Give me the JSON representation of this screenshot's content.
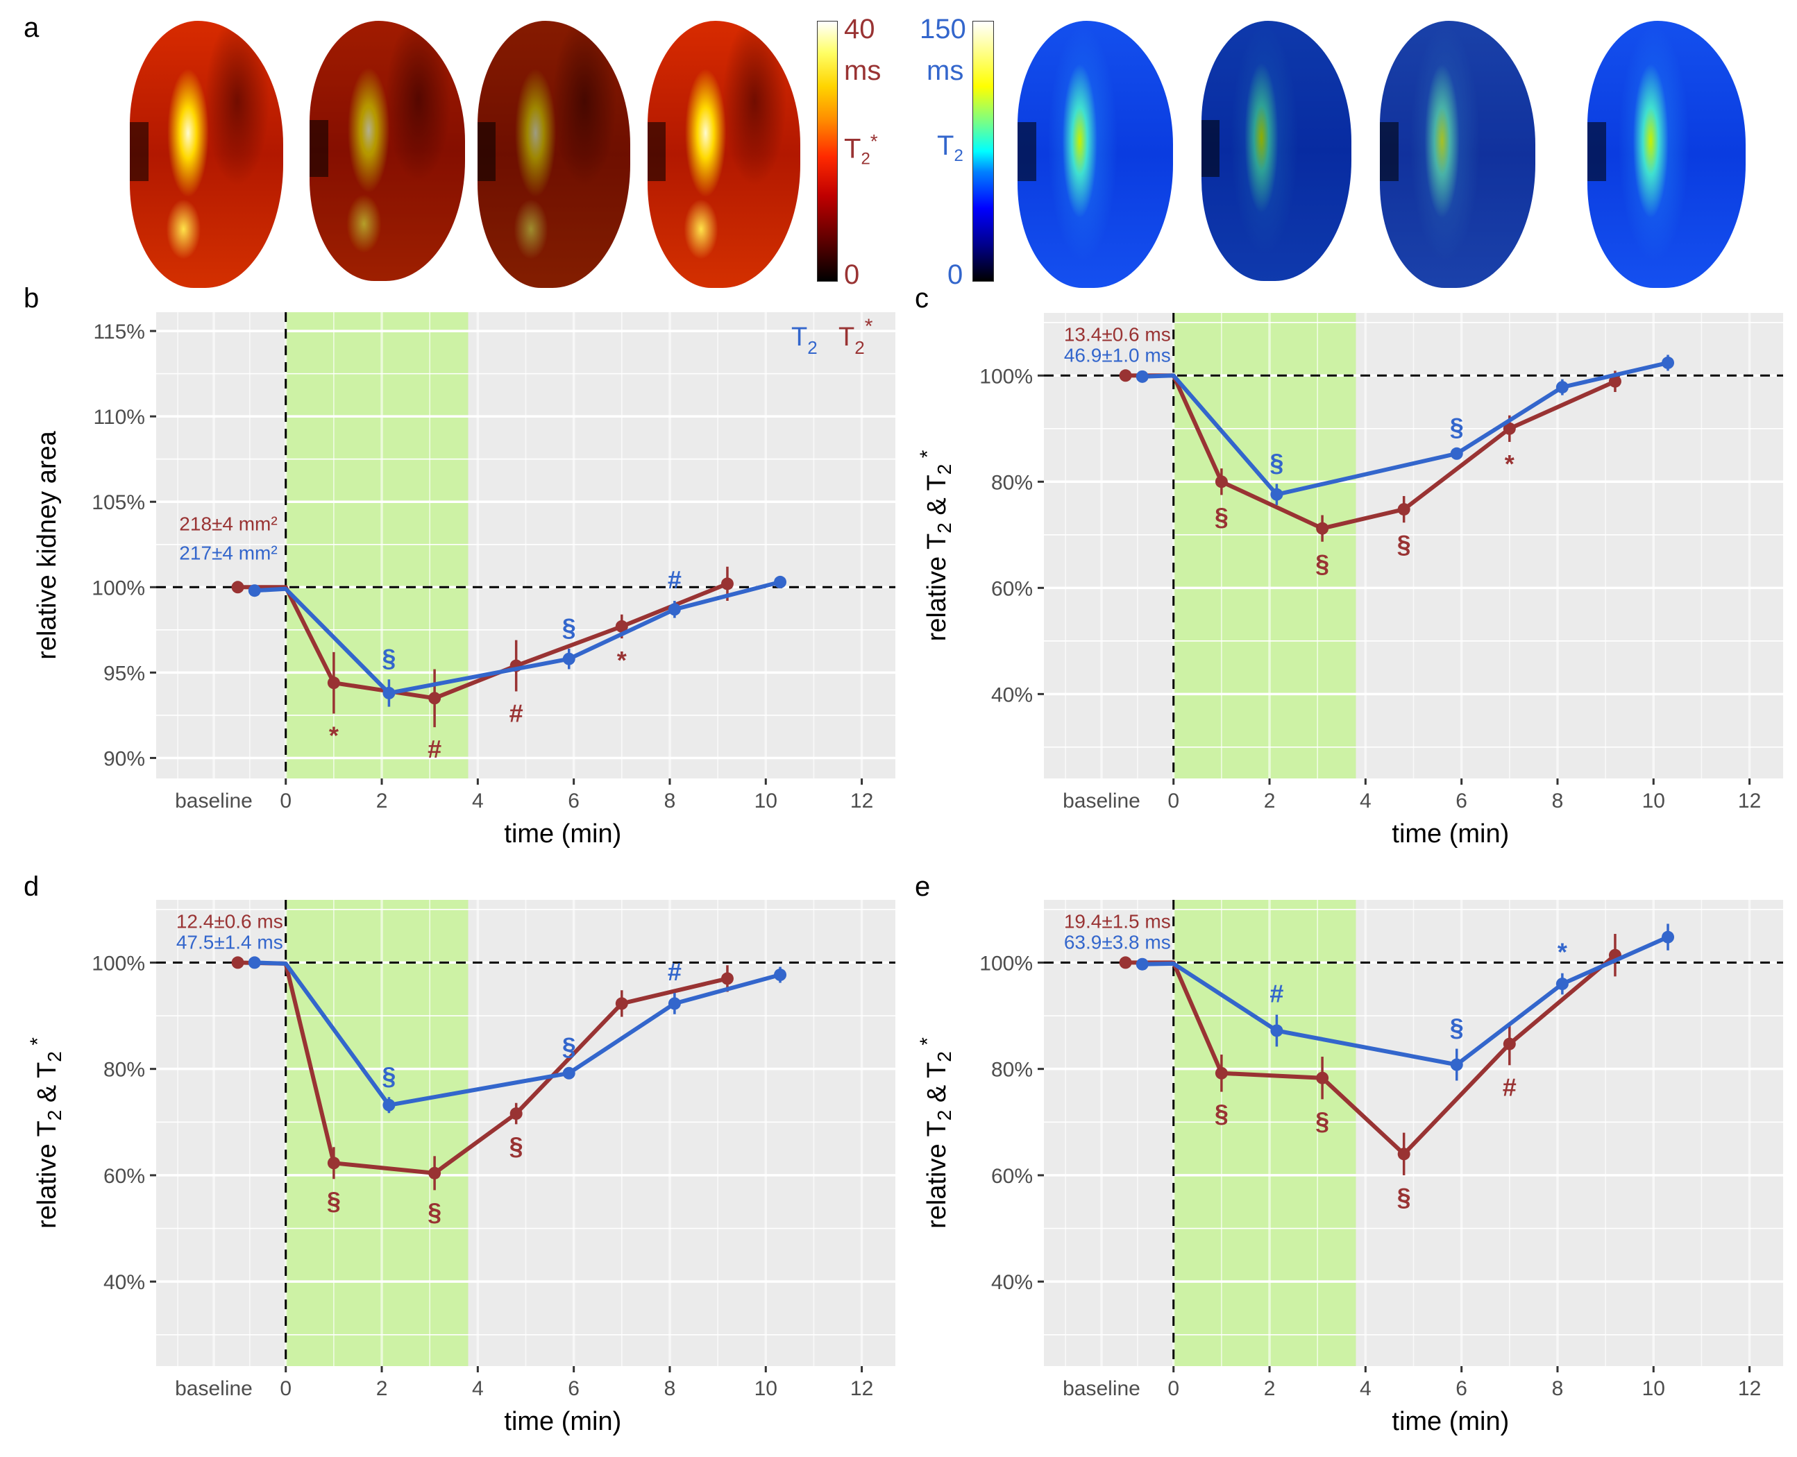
{
  "figure": {
    "panel_labels": [
      "a",
      "b",
      "c",
      "d",
      "e"
    ],
    "colors": {
      "T2star": "#993333",
      "T2": "#3366CC",
      "intervention_band": "#CDF2A5",
      "panel_bg": "#EBEBEB",
      "grid": "#FFFFFF"
    }
  },
  "panel_a": {
    "t2star_map": {
      "colorbar": {
        "max_label": "40",
        "unit_label": "ms",
        "name_label": "T",
        "name_sub": "2",
        "name_sup": "*",
        "min_label": "0",
        "colormap": "hot"
      },
      "kidney_images": [
        "t2star-map-1",
        "t2star-map-2",
        "t2star-map-3",
        "t2star-map-4"
      ]
    },
    "t2_map": {
      "colorbar": {
        "max_label": "150",
        "unit_label": "ms",
        "name_label": "T",
        "name_sub": "2",
        "min_label": "0",
        "colormap": "jet"
      },
      "kidney_images": [
        "t2-map-1",
        "t2-map-2",
        "t2-map-3",
        "t2-map-4"
      ]
    }
  },
  "chart_data": [
    {
      "panel": "b",
      "type": "line",
      "title": "",
      "xlabel": "time (min)",
      "ylabel": "relative kidney area",
      "xlim": [
        -2.7,
        12.7
      ],
      "ylim": [
        88.8,
        116.1
      ],
      "x_ticks": [
        {
          "v": -1.5,
          "label": "baseline"
        },
        {
          "v": 0,
          "label": "0"
        },
        {
          "v": 2,
          "label": "2"
        },
        {
          "v": 4,
          "label": "4"
        },
        {
          "v": 6,
          "label": "6"
        },
        {
          "v": 8,
          "label": "8"
        },
        {
          "v": 10,
          "label": "10"
        },
        {
          "v": 12,
          "label": "12"
        }
      ],
      "y_ticks": [
        {
          "v": 90,
          "label": "90%"
        },
        {
          "v": 95,
          "label": "95%"
        },
        {
          "v": 100,
          "label": "100%"
        },
        {
          "v": 105,
          "label": "105%"
        },
        {
          "v": 110,
          "label": "110%"
        },
        {
          "v": 115,
          "label": "115%"
        }
      ],
      "grid": true,
      "reference_hline": 100,
      "reference_vline": 0,
      "shaded_band": [
        0,
        3.8
      ],
      "legend": {
        "position": "top-right",
        "items": [
          {
            "label": "T",
            "sub": "2",
            "sup": "",
            "series": "T2"
          },
          {
            "label": "T",
            "sub": "2",
            "sup": "*",
            "series": "T2star"
          }
        ]
      },
      "baseline_annotations": [
        {
          "text": "218±4 mm²",
          "series": "T2star"
        },
        {
          "text": "217±4 mm²",
          "series": "T2"
        }
      ],
      "series": [
        {
          "name": "T2*",
          "key": "T2star",
          "points": [
            {
              "x": -1.0,
              "y": 100.0,
              "err": 0,
              "baseline": true
            },
            {
              "x": 0.0,
              "y": 100.0,
              "err": 0,
              "hidden_point": true
            },
            {
              "x": 1.0,
              "y": 94.4,
              "err": 1.8,
              "sig": "*",
              "sig_pos": "below"
            },
            {
              "x": 3.1,
              "y": 93.5,
              "err": 1.7,
              "sig": "#",
              "sig_pos": "below"
            },
            {
              "x": 4.8,
              "y": 95.4,
              "err": 1.5,
              "sig": "#",
              "sig_pos": "below"
            },
            {
              "x": 7.0,
              "y": 97.7,
              "err": 0.7,
              "sig": "*",
              "sig_pos": "below"
            },
            {
              "x": 9.2,
              "y": 100.2,
              "err": 1.0
            }
          ]
        },
        {
          "name": "T2",
          "key": "T2",
          "points": [
            {
              "x": -0.65,
              "y": 99.8,
              "err": 0,
              "baseline": true
            },
            {
              "x": 0.0,
              "y": 99.9,
              "err": 0,
              "hidden_point": true
            },
            {
              "x": 2.15,
              "y": 93.8,
              "err": 0.8,
              "sig": "§",
              "sig_pos": "above"
            },
            {
              "x": 5.9,
              "y": 95.8,
              "err": 0.6,
              "sig": "§",
              "sig_pos": "above"
            },
            {
              "x": 8.1,
              "y": 98.7,
              "err": 0.5,
              "sig": "#",
              "sig_pos": "above"
            },
            {
              "x": 10.3,
              "y": 100.3,
              "err": 0.3
            }
          ]
        }
      ]
    },
    {
      "panel": "c",
      "type": "line",
      "title": "",
      "xlabel": "time (min)",
      "ylabel": "relative T2 & T2*",
      "xlim": [
        -2.7,
        12.7
      ],
      "ylim": [
        24.1,
        111.8
      ],
      "x_ticks": [
        {
          "v": -1.5,
          "label": "baseline"
        },
        {
          "v": 0,
          "label": "0"
        },
        {
          "v": 2,
          "label": "2"
        },
        {
          "v": 4,
          "label": "4"
        },
        {
          "v": 6,
          "label": "6"
        },
        {
          "v": 8,
          "label": "8"
        },
        {
          "v": 10,
          "label": "10"
        },
        {
          "v": 12,
          "label": "12"
        }
      ],
      "y_ticks": [
        {
          "v": 40,
          "label": "40%"
        },
        {
          "v": 60,
          "label": "60%"
        },
        {
          "v": 80,
          "label": "80%"
        },
        {
          "v": 100,
          "label": "100%"
        }
      ],
      "grid": true,
      "reference_hline": 100,
      "reference_vline": 0,
      "shaded_band": [
        0,
        3.8
      ],
      "baseline_annotations": [
        {
          "text": "13.4±0.6 ms",
          "series": "T2star"
        },
        {
          "text": "46.9±1.0 ms",
          "series": "T2"
        }
      ],
      "series": [
        {
          "name": "T2*",
          "key": "T2star",
          "points": [
            {
              "x": -1.0,
              "y": 100.0,
              "err": 0,
              "baseline": true
            },
            {
              "x": 0.0,
              "y": 100.0,
              "err": 0,
              "hidden_point": true
            },
            {
              "x": 1.0,
              "y": 80.0,
              "err": 2.5,
              "sig": "§",
              "sig_pos": "below"
            },
            {
              "x": 3.1,
              "y": 71.2,
              "err": 2.5,
              "sig": "§",
              "sig_pos": "below"
            },
            {
              "x": 4.8,
              "y": 74.8,
              "err": 2.5,
              "sig": "§",
              "sig_pos": "below"
            },
            {
              "x": 7.0,
              "y": 90.0,
              "err": 2.5,
              "sig": "*",
              "sig_pos": "below"
            },
            {
              "x": 9.2,
              "y": 98.9,
              "err": 2.0
            }
          ]
        },
        {
          "name": "T2",
          "key": "T2",
          "points": [
            {
              "x": -0.65,
              "y": 99.8,
              "err": 0,
              "baseline": true
            },
            {
              "x": 0.0,
              "y": 100.0,
              "err": 0,
              "hidden_point": true
            },
            {
              "x": 2.15,
              "y": 77.6,
              "err": 2.0,
              "sig": "§",
              "sig_pos": "above"
            },
            {
              "x": 5.9,
              "y": 85.3,
              "err": 1.0,
              "sig": "§",
              "sig_pos": "above"
            },
            {
              "x": 8.1,
              "y": 97.8,
              "err": 1.5
            },
            {
              "x": 10.3,
              "y": 102.4,
              "err": 1.5
            }
          ]
        }
      ]
    },
    {
      "panel": "d",
      "type": "line",
      "title": "",
      "xlabel": "time (min)",
      "ylabel": "relative T2 & T2*",
      "xlim": [
        -2.7,
        12.7
      ],
      "ylim": [
        24.1,
        111.8
      ],
      "x_ticks": [
        {
          "v": -1.5,
          "label": "baseline"
        },
        {
          "v": 0,
          "label": "0"
        },
        {
          "v": 2,
          "label": "2"
        },
        {
          "v": 4,
          "label": "4"
        },
        {
          "v": 6,
          "label": "6"
        },
        {
          "v": 8,
          "label": "8"
        },
        {
          "v": 10,
          "label": "10"
        },
        {
          "v": 12,
          "label": "12"
        }
      ],
      "y_ticks": [
        {
          "v": 40,
          "label": "40%"
        },
        {
          "v": 60,
          "label": "60%"
        },
        {
          "v": 80,
          "label": "80%"
        },
        {
          "v": 100,
          "label": "100%"
        }
      ],
      "grid": true,
      "reference_hline": 100,
      "reference_vline": 0,
      "shaded_band": [
        0,
        3.8
      ],
      "baseline_annotations": [
        {
          "text": "12.4±0.6 ms",
          "series": "T2star"
        },
        {
          "text": "47.5±1.4 ms",
          "series": "T2"
        }
      ],
      "series": [
        {
          "name": "T2*",
          "key": "T2star",
          "points": [
            {
              "x": -1.0,
              "y": 100.0,
              "err": 0,
              "baseline": true
            },
            {
              "x": 0.0,
              "y": 99.8,
              "err": 0,
              "hidden_point": true
            },
            {
              "x": 1.0,
              "y": 62.3,
              "err": 3.0,
              "sig": "§",
              "sig_pos": "below"
            },
            {
              "x": 3.1,
              "y": 60.4,
              "err": 3.2,
              "sig": "§",
              "sig_pos": "below"
            },
            {
              "x": 4.8,
              "y": 71.6,
              "err": 2.0,
              "sig": "§",
              "sig_pos": "below"
            },
            {
              "x": 7.0,
              "y": 92.3,
              "err": 2.5
            },
            {
              "x": 9.2,
              "y": 97.0,
              "err": 2.5
            }
          ]
        },
        {
          "name": "T2",
          "key": "T2",
          "points": [
            {
              "x": -0.65,
              "y": 100.0,
              "err": 0,
              "baseline": true
            },
            {
              "x": 0.0,
              "y": 99.8,
              "err": 0,
              "hidden_point": true
            },
            {
              "x": 2.15,
              "y": 73.2,
              "err": 1.5,
              "sig": "§",
              "sig_pos": "above"
            },
            {
              "x": 5.9,
              "y": 79.2,
              "err": 1.0,
              "sig": "§",
              "sig_pos": "above"
            },
            {
              "x": 8.1,
              "y": 92.3,
              "err": 2.0,
              "sig": "#",
              "sig_pos": "above"
            },
            {
              "x": 10.3,
              "y": 97.7,
              "err": 1.5
            }
          ]
        }
      ]
    },
    {
      "panel": "e",
      "type": "line",
      "title": "",
      "xlabel": "time (min)",
      "ylabel": "relative T2 & T2*",
      "xlim": [
        -2.7,
        12.7
      ],
      "ylim": [
        24.1,
        111.8
      ],
      "x_ticks": [
        {
          "v": -1.5,
          "label": "baseline"
        },
        {
          "v": 0,
          "label": "0"
        },
        {
          "v": 2,
          "label": "2"
        },
        {
          "v": 4,
          "label": "4"
        },
        {
          "v": 6,
          "label": "6"
        },
        {
          "v": 8,
          "label": "8"
        },
        {
          "v": 10,
          "label": "10"
        },
        {
          "v": 12,
          "label": "12"
        }
      ],
      "y_ticks": [
        {
          "v": 40,
          "label": "40%"
        },
        {
          "v": 60,
          "label": "60%"
        },
        {
          "v": 80,
          "label": "80%"
        },
        {
          "v": 100,
          "label": "100%"
        }
      ],
      "grid": true,
      "reference_hline": 100,
      "reference_vline": 0,
      "shaded_band": [
        0,
        3.8
      ],
      "baseline_annotations": [
        {
          "text": "19.4±1.5 ms",
          "series": "T2star"
        },
        {
          "text": "63.9±3.8 ms",
          "series": "T2"
        }
      ],
      "series": [
        {
          "name": "T2*",
          "key": "T2star",
          "points": [
            {
              "x": -1.0,
              "y": 100.0,
              "err": 0,
              "baseline": true
            },
            {
              "x": 0.0,
              "y": 100.0,
              "err": 0,
              "hidden_point": true
            },
            {
              "x": 1.0,
              "y": 79.2,
              "err": 3.5,
              "sig": "§",
              "sig_pos": "below"
            },
            {
              "x": 3.1,
              "y": 78.3,
              "err": 4.0,
              "sig": "§",
              "sig_pos": "below"
            },
            {
              "x": 4.8,
              "y": 64.0,
              "err": 4.0,
              "sig": "§",
              "sig_pos": "below"
            },
            {
              "x": 7.0,
              "y": 84.7,
              "err": 4.0,
              "sig": "#",
              "sig_pos": "below"
            },
            {
              "x": 9.2,
              "y": 101.4,
              "err": 4.0
            }
          ]
        },
        {
          "name": "T2",
          "key": "T2",
          "points": [
            {
              "x": -0.65,
              "y": 99.7,
              "err": 0,
              "baseline": true
            },
            {
              "x": 0.0,
              "y": 99.8,
              "err": 0,
              "hidden_point": true
            },
            {
              "x": 2.15,
              "y": 87.2,
              "err": 3.0,
              "sig": "#",
              "sig_pos": "above"
            },
            {
              "x": 5.9,
              "y": 80.8,
              "err": 3.0,
              "sig": "§",
              "sig_pos": "above"
            },
            {
              "x": 8.1,
              "y": 96.0,
              "err": 2.0,
              "sig": "*",
              "sig_pos": "above"
            },
            {
              "x": 10.3,
              "y": 104.8,
              "err": 2.5
            }
          ]
        }
      ]
    }
  ]
}
